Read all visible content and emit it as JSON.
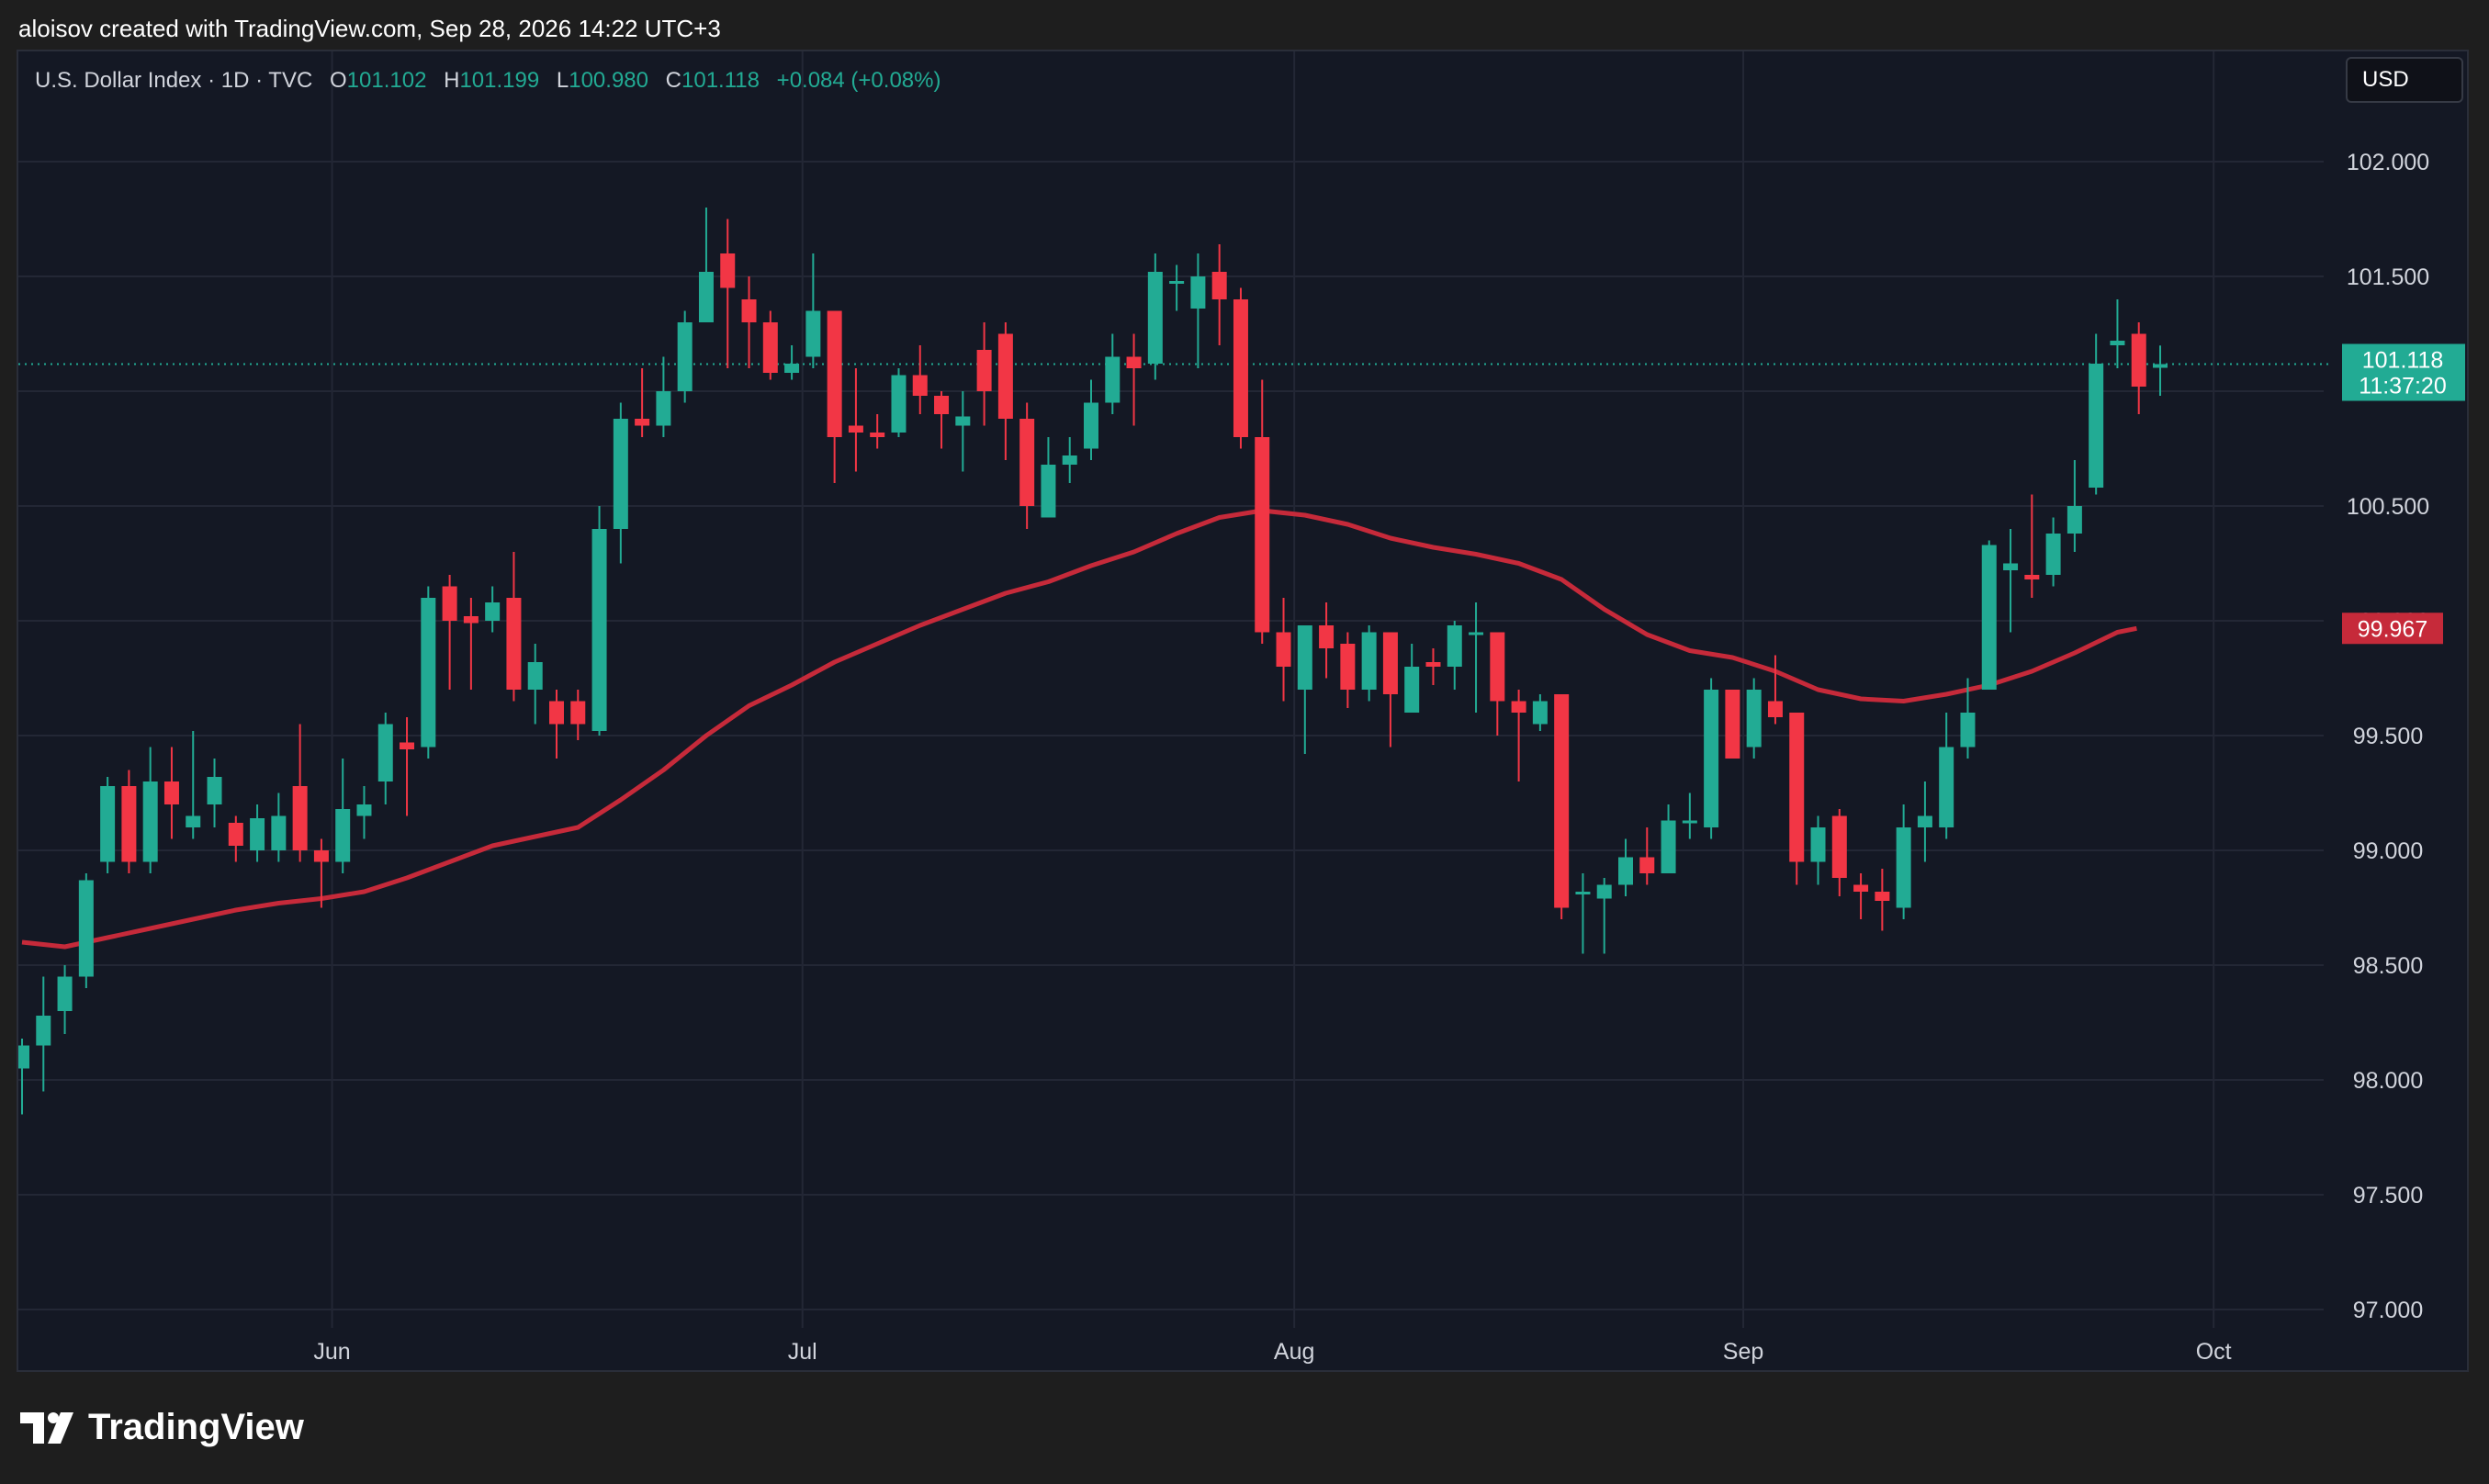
{
  "header": {
    "attribution": "aloisov created with TradingView.com, Sep 28, 2026 14:22 UTC+3"
  },
  "legend": {
    "symbol": "U.S. Dollar Index · 1D · TVC",
    "open_label": "O",
    "open": "101.102",
    "high_label": "H",
    "high": "101.199",
    "low_label": "L",
    "low": "100.980",
    "close_label": "C",
    "close": "101.118",
    "change": "+0.084 (+0.08%)"
  },
  "currency_button": "USD",
  "footer": {
    "brand": "TradingView"
  },
  "colors": {
    "up": "#22ab94",
    "down": "#f23645",
    "ma": "#c62a3a",
    "price_badge": "#22ab94",
    "ma_badge": "#c62a3a"
  },
  "chart_data": {
    "type": "candlestick",
    "y_ticks": [
      "102.000",
      "101.500",
      "100.500",
      "99.500",
      "99.000",
      "98.500",
      "98.000",
      "97.500",
      "97.000"
    ],
    "ylim": [
      97.0,
      102.0
    ],
    "x_ticks": [
      {
        "label": "Jun",
        "index": 14.5
      },
      {
        "label": "Jul",
        "index": 36.5
      },
      {
        "label": "Aug",
        "index": 59.5
      },
      {
        "label": "Sep",
        "index": 80.5
      },
      {
        "label": "Oct",
        "index": 102.5
      }
    ],
    "last_price": {
      "value": 101.118,
      "label": "101.118",
      "countdown": "11:37:20"
    },
    "ma_last": {
      "value": 99.967,
      "label": "99.967"
    },
    "candles": [
      [
        98.05,
        98.15,
        98.18,
        97.85
      ],
      [
        98.15,
        98.28,
        98.45,
        97.95
      ],
      [
        98.3,
        98.45,
        98.5,
        98.2
      ],
      [
        98.45,
        98.87,
        98.9,
        98.4
      ],
      [
        98.95,
        99.28,
        99.32,
        98.9
      ],
      [
        99.28,
        98.95,
        99.35,
        98.9
      ],
      [
        98.95,
        99.3,
        99.45,
        98.9
      ],
      [
        99.3,
        99.2,
        99.45,
        99.05
      ],
      [
        99.1,
        99.15,
        99.52,
        99.05
      ],
      [
        99.2,
        99.32,
        99.4,
        99.1
      ],
      [
        99.12,
        99.02,
        99.15,
        98.95
      ],
      [
        99.0,
        99.14,
        99.2,
        98.95
      ],
      [
        99.0,
        99.15,
        99.25,
        98.95
      ],
      [
        99.28,
        99.0,
        99.55,
        98.95
      ],
      [
        99.0,
        98.95,
        99.05,
        98.75
      ],
      [
        98.95,
        99.18,
        99.4,
        98.9
      ],
      [
        99.15,
        99.2,
        99.28,
        99.05
      ],
      [
        99.3,
        99.55,
        99.6,
        99.2
      ],
      [
        99.47,
        99.44,
        99.58,
        99.15
      ],
      [
        99.45,
        100.1,
        100.15,
        99.4
      ],
      [
        100.15,
        100.0,
        100.2,
        99.7
      ],
      [
        100.02,
        99.99,
        100.1,
        99.7
      ],
      [
        100.0,
        100.08,
        100.15,
        99.95
      ],
      [
        100.1,
        99.7,
        100.3,
        99.65
      ],
      [
        99.7,
        99.82,
        99.9,
        99.55
      ],
      [
        99.65,
        99.55,
        99.7,
        99.4
      ],
      [
        99.65,
        99.55,
        99.7,
        99.48
      ],
      [
        99.52,
        100.4,
        100.5,
        99.5
      ],
      [
        100.4,
        100.88,
        100.95,
        100.25
      ],
      [
        100.88,
        100.85,
        101.1,
        100.8
      ],
      [
        100.85,
        101.0,
        101.15,
        100.8
      ],
      [
        101.0,
        101.3,
        101.35,
        100.95
      ],
      [
        101.3,
        101.52,
        101.8,
        101.3
      ],
      [
        101.6,
        101.45,
        101.75,
        101.1
      ],
      [
        101.4,
        101.3,
        101.5,
        101.1
      ],
      [
        101.3,
        101.08,
        101.35,
        101.05
      ],
      [
        101.08,
        101.12,
        101.2,
        101.05
      ],
      [
        101.15,
        101.35,
        101.6,
        101.1
      ],
      [
        101.35,
        100.8,
        101.35,
        100.6
      ],
      [
        100.85,
        100.82,
        101.1,
        100.65
      ],
      [
        100.82,
        100.8,
        100.9,
        100.75
      ],
      [
        100.82,
        101.07,
        101.1,
        100.8
      ],
      [
        101.07,
        100.98,
        101.2,
        100.9
      ],
      [
        100.98,
        100.9,
        101.0,
        100.75
      ],
      [
        100.85,
        100.89,
        101.0,
        100.65
      ],
      [
        101.18,
        101.0,
        101.3,
        100.85
      ],
      [
        101.25,
        100.88,
        101.3,
        100.7
      ],
      [
        100.88,
        100.5,
        100.95,
        100.4
      ],
      [
        100.45,
        100.68,
        100.8,
        100.45
      ],
      [
        100.68,
        100.72,
        100.8,
        100.6
      ],
      [
        100.75,
        100.95,
        101.05,
        100.7
      ],
      [
        100.95,
        101.15,
        101.25,
        100.9
      ],
      [
        101.15,
        101.1,
        101.25,
        100.85
      ],
      [
        101.12,
        101.52,
        101.6,
        101.05
      ],
      [
        101.48,
        101.48,
        101.55,
        101.35
      ],
      [
        101.36,
        101.5,
        101.6,
        101.1
      ],
      [
        101.52,
        101.4,
        101.64,
        101.2
      ],
      [
        101.4,
        100.8,
        101.45,
        100.75
      ],
      [
        100.8,
        99.95,
        101.05,
        99.9
      ],
      [
        99.95,
        99.8,
        100.1,
        99.65
      ],
      [
        99.7,
        99.98,
        99.95,
        99.42
      ],
      [
        99.98,
        99.88,
        100.08,
        99.75
      ],
      [
        99.9,
        99.7,
        99.95,
        99.62
      ],
      [
        99.7,
        99.95,
        99.98,
        99.65
      ],
      [
        99.95,
        99.68,
        99.95,
        99.45
      ],
      [
        99.6,
        99.8,
        99.9,
        99.6
      ],
      [
        99.82,
        99.8,
        99.88,
        99.72
      ],
      [
        99.8,
        99.98,
        100.0,
        99.7
      ],
      [
        99.95,
        99.95,
        100.08,
        99.6
      ],
      [
        99.95,
        99.65,
        99.95,
        99.5
      ],
      [
        99.65,
        99.6,
        99.7,
        99.3
      ],
      [
        99.55,
        99.65,
        99.68,
        99.52
      ],
      [
        99.68,
        98.75,
        99.68,
        98.7
      ],
      [
        98.82,
        98.82,
        98.9,
        98.55
      ],
      [
        98.79,
        98.85,
        98.88,
        98.55
      ],
      [
        98.85,
        98.97,
        99.05,
        98.8
      ],
      [
        98.97,
        98.9,
        99.1,
        98.85
      ],
      [
        98.9,
        99.13,
        99.2,
        98.9
      ],
      [
        99.13,
        99.13,
        99.25,
        99.05
      ],
      [
        99.1,
        99.7,
        99.75,
        99.05
      ],
      [
        99.7,
        99.4,
        99.7,
        99.4
      ],
      [
        99.45,
        99.7,
        99.75,
        99.4
      ],
      [
        99.65,
        99.58,
        99.85,
        99.55
      ],
      [
        99.6,
        98.95,
        99.6,
        98.85
      ],
      [
        98.95,
        99.1,
        99.15,
        98.85
      ],
      [
        99.15,
        98.88,
        99.18,
        98.8
      ],
      [
        98.85,
        98.82,
        98.9,
        98.7
      ],
      [
        98.82,
        98.78,
        98.92,
        98.65
      ],
      [
        98.75,
        99.1,
        99.2,
        98.7
      ],
      [
        99.1,
        99.15,
        99.3,
        98.95
      ],
      [
        99.1,
        99.45,
        99.6,
        99.05
      ],
      [
        99.45,
        99.6,
        99.75,
        99.4
      ],
      [
        99.7,
        100.33,
        100.35,
        99.7
      ],
      [
        100.22,
        100.25,
        100.4,
        99.95
      ],
      [
        100.2,
        100.18,
        100.55,
        100.1
      ],
      [
        100.2,
        100.38,
        100.45,
        100.15
      ],
      [
        100.38,
        100.5,
        100.7,
        100.3
      ],
      [
        100.58,
        101.12,
        101.25,
        100.55
      ],
      [
        101.2,
        101.22,
        101.4,
        101.1
      ],
      [
        101.25,
        101.02,
        101.3,
        100.9
      ],
      [
        101.102,
        101.118,
        101.199,
        100.98
      ]
    ],
    "ma": [
      [
        0,
        98.6
      ],
      [
        2,
        98.58
      ],
      [
        4,
        98.62
      ],
      [
        6,
        98.66
      ],
      [
        8,
        98.7
      ],
      [
        10,
        98.74
      ],
      [
        12,
        98.77
      ],
      [
        14,
        98.79
      ],
      [
        16,
        98.82
      ],
      [
        18,
        98.88
      ],
      [
        20,
        98.95
      ],
      [
        22,
        99.02
      ],
      [
        24,
        99.06
      ],
      [
        26,
        99.1
      ],
      [
        28,
        99.22
      ],
      [
        30,
        99.35
      ],
      [
        32,
        99.5
      ],
      [
        34,
        99.63
      ],
      [
        36,
        99.72
      ],
      [
        38,
        99.82
      ],
      [
        40,
        99.9
      ],
      [
        42,
        99.98
      ],
      [
        44,
        100.05
      ],
      [
        46,
        100.12
      ],
      [
        48,
        100.17
      ],
      [
        50,
        100.24
      ],
      [
        52,
        100.3
      ],
      [
        54,
        100.38
      ],
      [
        56,
        100.45
      ],
      [
        58,
        100.48
      ],
      [
        60,
        100.46
      ],
      [
        62,
        100.42
      ],
      [
        64,
        100.36
      ],
      [
        66,
        100.32
      ],
      [
        68,
        100.29
      ],
      [
        70,
        100.25
      ],
      [
        72,
        100.18
      ],
      [
        74,
        100.05
      ],
      [
        76,
        99.94
      ],
      [
        78,
        99.87
      ],
      [
        80,
        99.84
      ],
      [
        82,
        99.78
      ],
      [
        84,
        99.7
      ],
      [
        86,
        99.66
      ],
      [
        88,
        99.65
      ],
      [
        90,
        99.68
      ],
      [
        92,
        99.72
      ],
      [
        94,
        99.78
      ],
      [
        96,
        99.86
      ],
      [
        98,
        99.95
      ],
      [
        98.9,
        99.967
      ]
    ]
  }
}
